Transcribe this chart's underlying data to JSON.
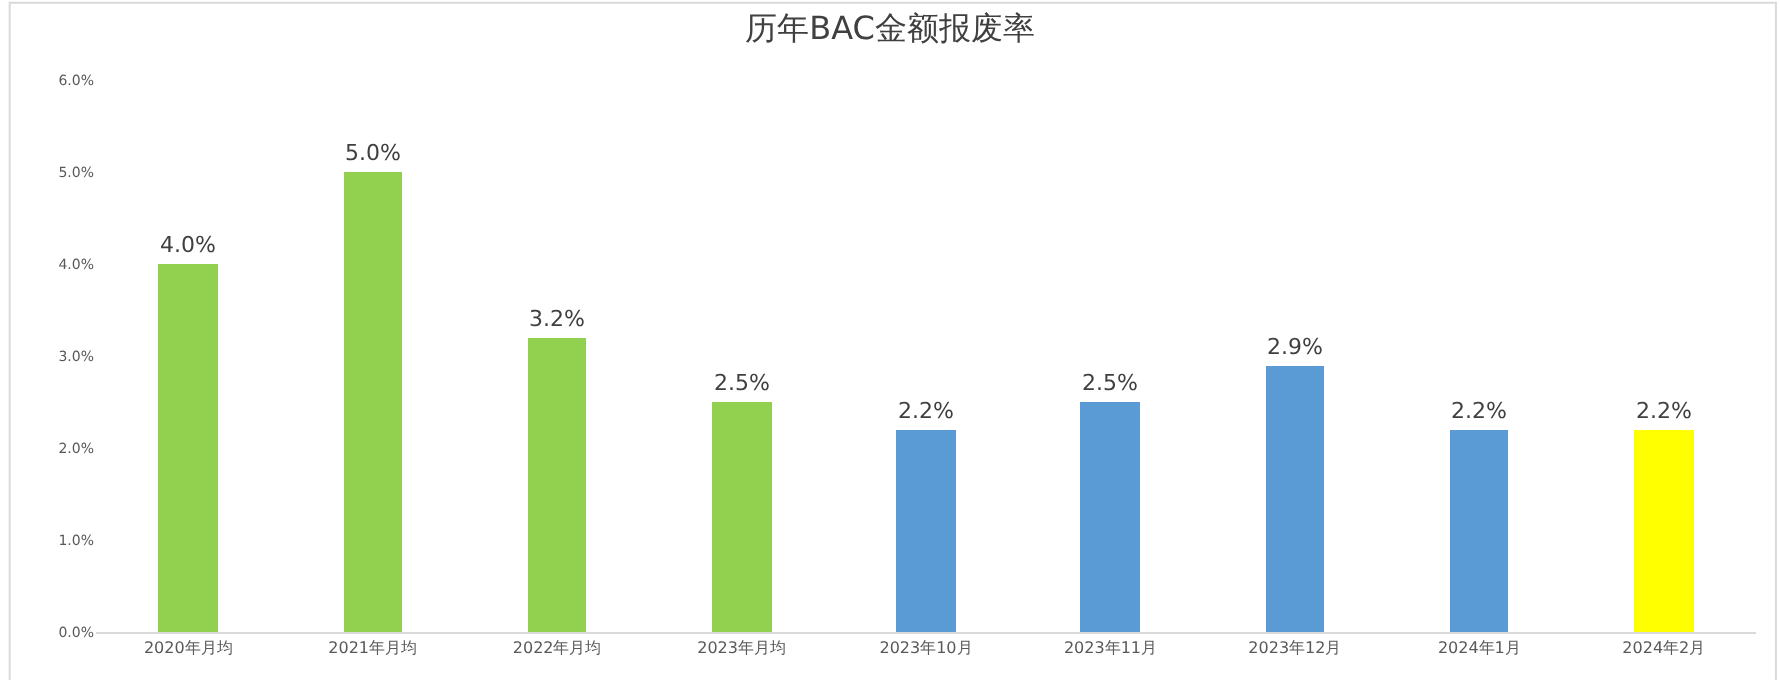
{
  "chart_data": {
    "type": "bar",
    "title": "历年BAC金额报废率",
    "categories": [
      "2020年月均",
      "2021年月均",
      "2022年月均",
      "2023年月均",
      "2023年10月",
      "2023年11月",
      "2023年12月",
      "2024年1月",
      "2024年2月"
    ],
    "values": [
      4.0,
      5.0,
      3.2,
      2.5,
      2.2,
      2.5,
      2.9,
      2.2,
      2.2
    ],
    "value_labels": [
      "4.0%",
      "5.0%",
      "3.2%",
      "2.5%",
      "2.2%",
      "2.5%",
      "2.9%",
      "2.2%",
      "2.2%"
    ],
    "colors": [
      "#92d050",
      "#92d050",
      "#92d050",
      "#92d050",
      "#5b9bd5",
      "#5b9bd5",
      "#5b9bd5",
      "#5b9bd5",
      "#ffff00"
    ],
    "ylim": [
      0,
      6
    ],
    "yticks": [
      {
        "value": 0,
        "label": "0.0%"
      },
      {
        "value": 1,
        "label": "1.0%"
      },
      {
        "value": 2,
        "label": "2.0%"
      },
      {
        "value": 3,
        "label": "3.0%"
      },
      {
        "value": 4,
        "label": "4.0%"
      },
      {
        "value": 5,
        "label": "5.0%"
      },
      {
        "value": 6,
        "label": "6.0%"
      }
    ],
    "grid": false,
    "legend": false
  }
}
